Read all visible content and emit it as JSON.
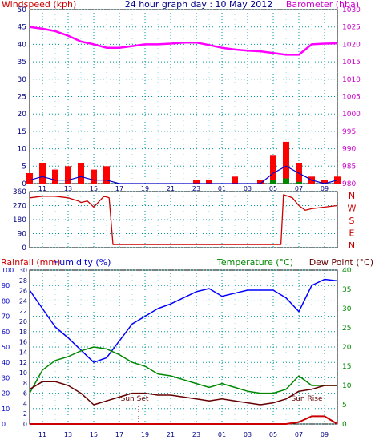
{
  "header": {
    "left_label": "Windspeed (kph)",
    "title": "24 hour graph day : 10 May 2012",
    "right_label": "Barometer (hba)"
  },
  "colors": {
    "wind_speed": "#ff0000",
    "wind_gust_line": "#0000cc",
    "rain_fill": "#008800",
    "barometer": "#ff00ff",
    "direction": "#cc0000",
    "humidity": "#0000ff",
    "temperature": "#008800",
    "dewpoint": "#660000",
    "rainfall": "#cc0000",
    "left_axis_title": "#cc0000",
    "right_axis_title": "#cc00cc",
    "humidity_axis": "#0000cc",
    "temp_axis": "#008800",
    "rain_axis": "#cc0000",
    "grid": "#009999"
  },
  "panel1": {
    "left_axis": {
      "min": 0,
      "max": 50,
      "step": 5,
      "ticks": [
        "0",
        "5",
        "10",
        "15",
        "20",
        "25",
        "30",
        "35",
        "40",
        "45",
        "50"
      ]
    },
    "right_axis": {
      "min": 980,
      "max": 1030,
      "step": 5,
      "ticks": [
        "980",
        "985",
        "990",
        "995",
        "1000",
        "1005",
        "1010",
        "1015",
        "1020",
        "1025",
        "1030"
      ]
    }
  },
  "panel2": {
    "left_axis": {
      "ticks": [
        "0",
        "90",
        "180",
        "270",
        "360"
      ]
    },
    "compass": [
      "N",
      "W",
      "S",
      "E",
      "N"
    ]
  },
  "panel3": {
    "left_label": "Rainfall (mm)",
    "mid_label": "Humidity (%)",
    "right_label": "Temperature (°C)",
    "right_label2": "Dew Point (°C)",
    "humidity_axis": {
      "min": 0,
      "max": 100,
      "ticks": [
        "0",
        "10",
        "20",
        "30",
        "40",
        "50",
        "60",
        "70",
        "80",
        "90",
        "100"
      ]
    },
    "rain_axis": {
      "min": 0,
      "max": 30,
      "ticks": [
        "0",
        "2",
        "4",
        "6",
        "8",
        "10",
        "12",
        "14",
        "16",
        "18",
        "20",
        "22",
        "24",
        "26",
        "28",
        "30"
      ]
    },
    "temp_axis": {
      "min": 0,
      "max": 40,
      "ticks": [
        "0",
        "5",
        "10",
        "15",
        "20",
        "25",
        "30",
        "35",
        "40"
      ]
    },
    "annotations": {
      "sunset": "Sun Set",
      "sunrise": "Sun Rise"
    }
  },
  "x_axis": {
    "hour_labels": [
      "11",
      "13",
      "15",
      "17",
      "19",
      "21",
      "23",
      "01",
      "03",
      "05",
      "07",
      "09"
    ]
  },
  "chart_data": [
    {
      "type": "line",
      "title": "24 hour graph day : 10 May 2012",
      "xlabel": "",
      "ylabel": "Windspeed (kph)",
      "y2label": "Barometer (hba)",
      "x": [
        10,
        11,
        12,
        13,
        14,
        15,
        16,
        17,
        18,
        19,
        20,
        21,
        22,
        23,
        24,
        25,
        26,
        27,
        28,
        29,
        30,
        31,
        32,
        33,
        34
      ],
      "ylim": [
        0,
        50
      ],
      "y2lim": [
        980,
        1030
      ],
      "series": [
        {
          "axis": "right",
          "values": [
            1025,
            1024.5,
            1023.8,
            1022.5,
            1020.8,
            1020,
            1019,
            1019,
            1019.5,
            1020,
            1020,
            1020.2,
            1020.5,
            1020.5,
            1019.8,
            1019,
            1018.5,
            1018.2,
            1018,
            1017.5,
            1017,
            1017,
            1020,
            1020.2,
            1020.3
          ]
        },
        {
          "axis": "left",
          "values": [
            3,
            6,
            4,
            5,
            6,
            4,
            5,
            0,
            0,
            0,
            0,
            0,
            0,
            1,
            1,
            0,
            2,
            0,
            1,
            8,
            12,
            6,
            2,
            1,
            2
          ]
        },
        {
          "axis": "left",
          "values": [
            1,
            2,
            1,
            1,
            2,
            1,
            1,
            0,
            0,
            0,
            0,
            0,
            0,
            0,
            0,
            0,
            0,
            0,
            0,
            3,
            5,
            3,
            1,
            0,
            1
          ]
        },
        {
          "axis": "left",
          "values": [
            0,
            0,
            0,
            0,
            0,
            0,
            0,
            0,
            0,
            0,
            0,
            0,
            0,
            0,
            0,
            0,
            0,
            0,
            0,
            1,
            1.5,
            0.5,
            0,
            0,
            0
          ]
        }
      ]
    },
    {
      "type": "line",
      "x": [
        10,
        11,
        12,
        13,
        13.8,
        14,
        14.5,
        15,
        15.8,
        16.2,
        16.5,
        17,
        20,
        24,
        28,
        29.6,
        29.8,
        30.5,
        31,
        31.5,
        32,
        33,
        34
      ],
      "ylim": [
        0,
        360
      ],
      "series": [
        {
          "values": [
            320,
            330,
            330,
            320,
            300,
            290,
            300,
            260,
            330,
            320,
            20,
            20,
            20,
            20,
            20,
            20,
            340,
            320,
            270,
            240,
            250,
            260,
            270
          ]
        }
      ]
    },
    {
      "type": "line",
      "x": [
        10,
        11,
        12,
        13,
        14,
        15,
        16,
        17,
        18,
        19,
        20,
        21,
        22,
        23,
        24,
        25,
        26,
        27,
        28,
        29,
        30,
        31,
        32,
        33,
        34
      ],
      "ylim": [
        0,
        100
      ],
      "y2lim": [
        0,
        40
      ],
      "series": [
        {
          "axis": "left",
          "values": [
            87,
            75,
            63,
            56,
            48,
            40,
            43,
            54,
            65,
            70,
            75,
            78,
            82,
            86,
            88,
            83,
            85,
            87,
            87,
            87,
            82,
            73,
            90,
            94,
            93
          ]
        },
        {
          "axis": "right",
          "values": [
            8,
            14,
            16.5,
            17.5,
            19,
            20,
            19.5,
            18,
            16,
            15,
            13,
            12.5,
            11.5,
            10.5,
            9.5,
            10.5,
            9.5,
            8.5,
            8,
            8,
            9,
            12.5,
            10,
            10,
            10
          ]
        },
        {
          "axis": "right",
          "values": [
            9,
            11,
            11,
            10,
            8,
            5,
            6,
            7,
            8,
            8,
            7.5,
            7.5,
            7,
            6.5,
            6,
            6.5,
            6,
            5.5,
            5,
            5.5,
            6.5,
            8.5,
            9,
            10,
            10
          ]
        },
        {
          "axis": "right",
          "values": [
            0,
            0,
            0,
            0,
            0,
            0,
            0,
            0,
            0,
            0,
            0,
            0,
            0,
            0,
            0,
            0,
            0,
            0,
            0,
            0,
            0,
            0.5,
            2,
            2,
            0
          ]
        }
      ]
    }
  ]
}
